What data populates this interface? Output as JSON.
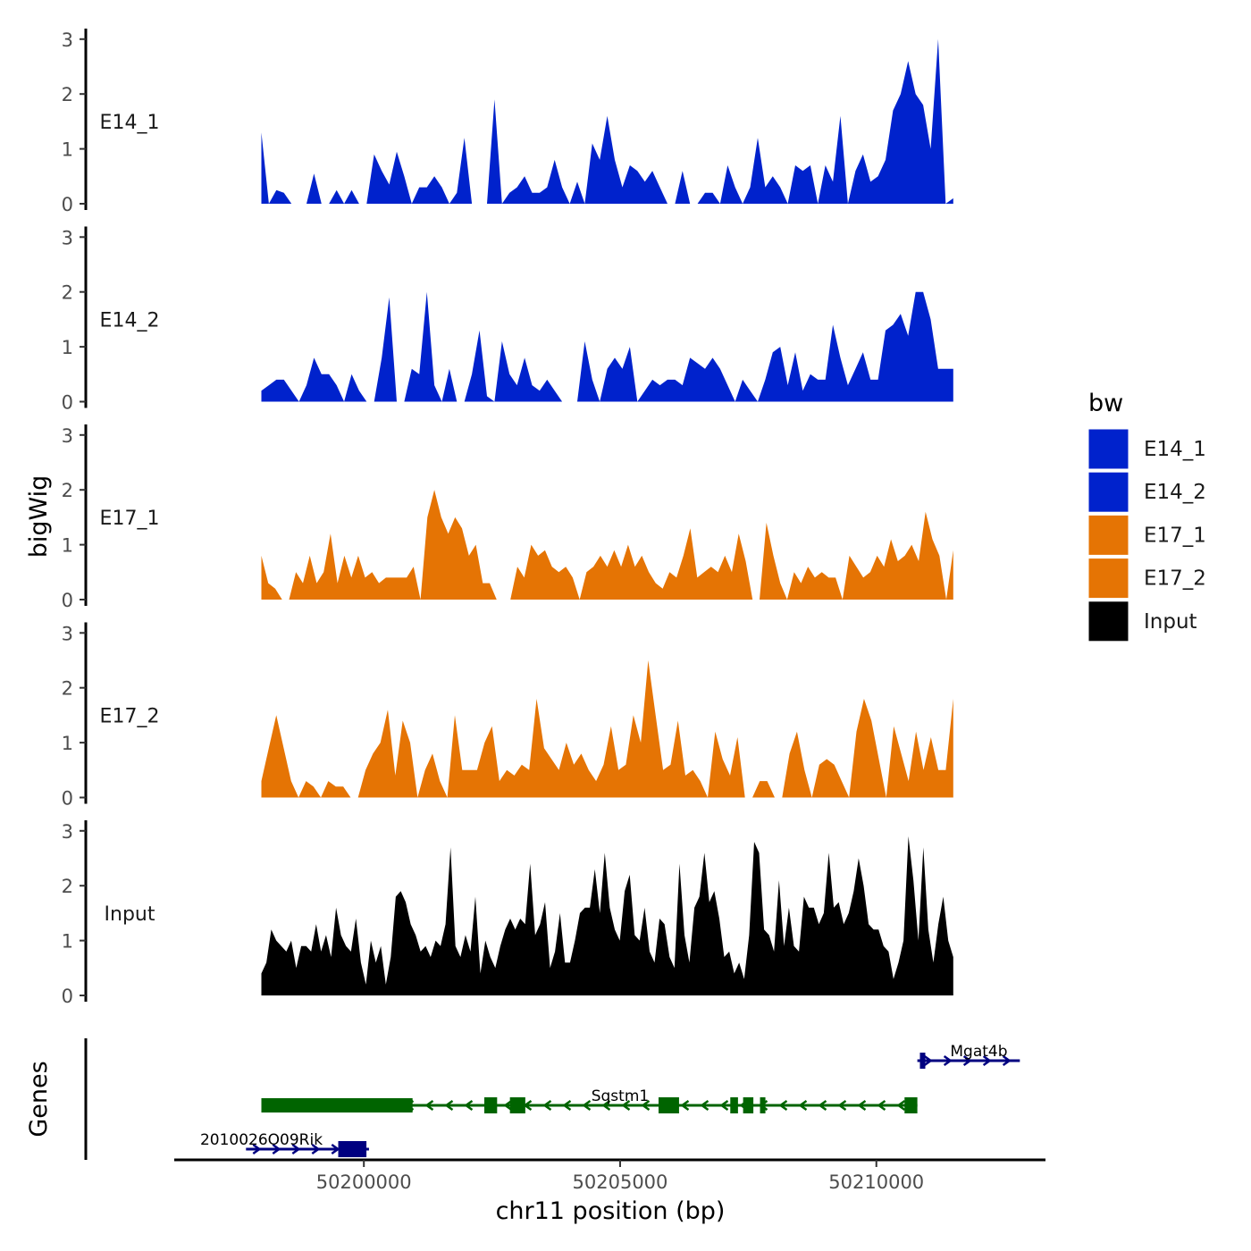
{
  "chart_data": {
    "type": "area",
    "title": "",
    "ylabel": "bigWig",
    "xlabel": "chr11 position (bp)",
    "xlim": [
      50196300,
      50213300
    ],
    "ylim": [
      0,
      3
    ],
    "y_ticks": [
      "0",
      "1",
      "2",
      "3"
    ],
    "x_ticks": [
      {
        "value": 50200000,
        "label": "50200000"
      },
      {
        "value": 50205000,
        "label": "50205000"
      },
      {
        "value": 50210000,
        "label": "50210000"
      }
    ],
    "region": {
      "start": 50198000,
      "end": 50211500
    },
    "colors": {
      "E14": "#0022cc",
      "E17": "#e57404",
      "Input": "#000000",
      "gene_plus": "#000080",
      "gene_minus": "#006400"
    },
    "tracks": [
      {
        "name": "E14_1",
        "color": "#0022cc",
        "values": [
          1.3,
          0,
          0.25,
          0.2,
          0,
          0,
          0,
          0.55,
          0,
          0,
          0.25,
          0,
          0.25,
          0,
          0,
          0.9,
          0.6,
          0.35,
          0.95,
          0.5,
          0,
          0.3,
          0.3,
          0.5,
          0.3,
          0,
          0.2,
          1.2,
          0,
          0,
          0,
          1.9,
          0,
          0.2,
          0.3,
          0.5,
          0.2,
          0.2,
          0.3,
          0.8,
          0.3,
          0,
          0.4,
          0,
          1.1,
          0.8,
          1.6,
          0.8,
          0.3,
          0.7,
          0.6,
          0.4,
          0.6,
          0.3,
          0,
          0,
          0.6,
          0,
          0,
          0.2,
          0.2,
          0,
          0.7,
          0.3,
          0,
          0.3,
          1.2,
          0.3,
          0.5,
          0.3,
          0,
          0.7,
          0.6,
          0.7,
          0,
          0.7,
          0.4,
          1.6,
          0,
          0.6,
          0.9,
          0.4,
          0.5,
          0.8,
          1.7,
          2.0,
          2.6,
          2.0,
          1.8,
          1.0,
          3.0,
          0,
          0.1
        ]
      },
      {
        "name": "E14_2",
        "color": "#0022cc",
        "values": [
          0.2,
          0.3,
          0.4,
          0.4,
          0.2,
          0,
          0.3,
          0.8,
          0.5,
          0.5,
          0.3,
          0,
          0.5,
          0.2,
          0,
          0,
          0.8,
          1.9,
          0,
          0,
          0.6,
          0.5,
          2.0,
          0.3,
          0,
          0.6,
          0,
          0,
          0.5,
          1.3,
          0.1,
          0,
          1.1,
          0.5,
          0.3,
          0.8,
          0.3,
          0.2,
          0.4,
          0.2,
          0,
          0,
          0,
          1.1,
          0.4,
          0,
          0.6,
          0.8,
          0.6,
          1.0,
          0,
          0.2,
          0.4,
          0.3,
          0.4,
          0.4,
          0.3,
          0.8,
          0.7,
          0.6,
          0.8,
          0.6,
          0.3,
          0,
          0.4,
          0.2,
          0,
          0.4,
          0.9,
          1.0,
          0.3,
          0.9,
          0.2,
          0.5,
          0.4,
          0.4,
          1.4,
          0.8,
          0.3,
          0.6,
          0.9,
          0.4,
          0.4,
          1.3,
          1.4,
          1.6,
          1.2,
          2.0,
          2.0,
          1.5,
          0.6,
          0.6,
          0.6
        ]
      },
      {
        "name": "E17_1",
        "color": "#e57404",
        "values": [
          0.8,
          0.3,
          0.2,
          0,
          0,
          0.5,
          0.3,
          0.8,
          0.3,
          0.5,
          1.2,
          0.3,
          0.8,
          0.4,
          0.8,
          0.4,
          0.5,
          0.3,
          0.4,
          0.4,
          0.4,
          0.4,
          0.6,
          0,
          1.5,
          2.0,
          1.5,
          1.2,
          1.5,
          1.3,
          0.8,
          1.0,
          0.3,
          0.3,
          0,
          0,
          0,
          0.6,
          0.4,
          1.0,
          0.8,
          0.9,
          0.6,
          0.5,
          0.6,
          0.4,
          0,
          0.5,
          0.6,
          0.8,
          0.6,
          0.9,
          0.6,
          1.0,
          0.6,
          0.8,
          0.5,
          0.3,
          0.2,
          0.5,
          0.4,
          0.8,
          1.3,
          0.4,
          0.5,
          0.6,
          0.5,
          0.8,
          0.5,
          1.2,
          0.7,
          0,
          0,
          1.4,
          0.8,
          0.3,
          0,
          0.5,
          0.3,
          0.6,
          0.4,
          0.5,
          0.4,
          0.4,
          0,
          0.8,
          0.6,
          0.4,
          0.5,
          0.8,
          0.6,
          1.1,
          0.7,
          0.8,
          1.0,
          0.7,
          1.6,
          1.1,
          0.8,
          0,
          0.9
        ]
      },
      {
        "name": "E17_2",
        "color": "#e57404",
        "values": [
          0.3,
          0.9,
          1.5,
          0.9,
          0.3,
          0,
          0.3,
          0.2,
          0,
          0.3,
          0.2,
          0.2,
          0,
          0,
          0.5,
          0.8,
          1.0,
          1.6,
          0.4,
          1.4,
          1.0,
          0,
          0.5,
          0.8,
          0.3,
          0,
          1.5,
          0.5,
          0.5,
          0.5,
          1.0,
          1.3,
          0.3,
          0.5,
          0.4,
          0.6,
          0.5,
          1.8,
          0.9,
          0.7,
          0.5,
          1.0,
          0.6,
          0.8,
          0.5,
          0.3,
          0.6,
          1.3,
          0.5,
          0.6,
          1.5,
          1.0,
          2.5,
          1.5,
          0.5,
          0.6,
          1.4,
          0.4,
          0.5,
          0.3,
          0,
          1.2,
          0.7,
          0.4,
          1.1,
          0,
          0,
          0.3,
          0.3,
          0,
          0,
          0.8,
          1.2,
          0.5,
          0,
          0.6,
          0.7,
          0.6,
          0.3,
          0,
          1.2,
          1.8,
          1.4,
          0.7,
          0,
          1.3,
          0.8,
          0.3,
          1.2,
          0.5,
          1.1,
          0.5,
          0.5,
          1.8
        ]
      },
      {
        "name": "Input",
        "color": "#000000",
        "values": [
          0.4,
          0.6,
          1.2,
          1.0,
          0.9,
          0.8,
          1.0,
          0.5,
          0.9,
          0.9,
          0.8,
          1.3,
          0.8,
          1.1,
          0.7,
          1.6,
          1.1,
          0.9,
          0.8,
          1.4,
          0.6,
          0.2,
          1.0,
          0.6,
          0.9,
          0.2,
          0.7,
          1.8,
          1.9,
          1.7,
          1.3,
          1.1,
          0.8,
          0.9,
          0.7,
          1.0,
          0.9,
          1.3,
          2.7,
          0.9,
          0.7,
          1.1,
          0.8,
          1.8,
          0.4,
          1.0,
          0.7,
          0.5,
          0.9,
          1.2,
          1.4,
          1.2,
          1.4,
          1.3,
          2.4,
          1.1,
          1.3,
          1.7,
          0.5,
          0.8,
          1.5,
          0.6,
          0.6,
          1.0,
          1.5,
          1.6,
          1.6,
          2.3,
          1.5,
          2.6,
          1.6,
          1.2,
          1.0,
          1.9,
          2.2,
          1.1,
          1.0,
          1.6,
          0.8,
          0.6,
          1.4,
          1.3,
          0.7,
          0.5,
          2.4,
          1.1,
          0.6,
          1.6,
          1.8,
          2.6,
          1.7,
          1.9,
          1.4,
          0.7,
          0.8,
          0.4,
          0.6,
          0.3,
          1.1,
          2.8,
          2.6,
          1.2,
          1.1,
          0.8,
          2.1,
          0.9,
          1.6,
          0.9,
          0.8,
          1.8,
          1.6,
          1.6,
          1.3,
          1.5,
          2.6,
          1.6,
          1.7,
          1.3,
          1.5,
          1.9,
          2.5,
          2.0,
          1.3,
          1.2,
          1.2,
          0.9,
          0.8,
          0.3,
          0.6,
          1.0,
          2.9,
          2.1,
          1.0,
          2.7,
          1.2,
          0.6,
          1.3,
          1.8,
          1.0,
          0.7
        ]
      }
    ],
    "genes_track_label": "Genes",
    "genes": [
      {
        "name": "Mgat4b",
        "strand": "+",
        "start": 50210800,
        "end": 50212800,
        "row": 0,
        "label_pos": 50212000,
        "exons": [
          [
            50210850,
            50210950
          ]
        ],
        "utr": [],
        "color": "#000080"
      },
      {
        "name": "Sqstm1",
        "strand": "-",
        "start": 50198000,
        "end": 50210800,
        "row": 1,
        "label_pos": 50205000,
        "exons": [
          [
            50202350,
            50202600
          ],
          [
            50202850,
            50203150
          ],
          [
            50205750,
            50206150
          ],
          [
            50207150,
            50207300
          ],
          [
            50207400,
            50207600
          ],
          [
            50207730,
            50207820
          ],
          [
            50210550,
            50210800
          ]
        ],
        "utr": [
          [
            50198000,
            50200950
          ]
        ],
        "color": "#006400"
      },
      {
        "name": "2010026O09Rik",
        "strand": "+",
        "start": 50197700,
        "end": 50200100,
        "row": 2,
        "label_pos": 50198000,
        "exons": [
          [
            50199500,
            50200050
          ]
        ],
        "utr": [],
        "color": "#000080"
      }
    ],
    "legend": {
      "title": "bw",
      "position": "right",
      "entries": [
        {
          "label": "E14_1",
          "color": "#0022cc"
        },
        {
          "label": "E14_2",
          "color": "#0022cc"
        },
        {
          "label": "E17_1",
          "color": "#e57404"
        },
        {
          "label": "E17_2",
          "color": "#e57404"
        },
        {
          "label": "Input",
          "color": "#000000"
        }
      ]
    }
  }
}
